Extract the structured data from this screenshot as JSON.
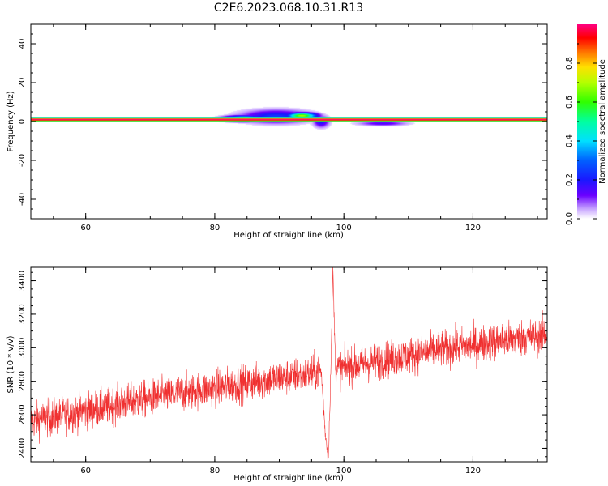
{
  "figure": {
    "title": "C2E6.2023.068.10.31.R13"
  },
  "colors": {
    "snr_line": "#f03030",
    "background": "#ffffff"
  },
  "colorbar": {
    "label": "Normalized spectral amplitude",
    "ticks": [
      "0.0",
      "0.2",
      "0.4",
      "0.6",
      "0.8"
    ],
    "tick_values": [
      0.0,
      0.2,
      0.4,
      0.6,
      0.8
    ],
    "range": [
      0,
      1
    ],
    "colormap": "rainbow"
  },
  "chart_data": [
    {
      "type": "heatmap",
      "title": "",
      "xlabel": "Height of straight line (km)",
      "ylabel": "Frequency (Hz)",
      "xlim": [
        51.5,
        131.5
      ],
      "ylim": [
        -50,
        50
      ],
      "xticks": [
        60,
        80,
        100,
        120
      ],
      "yticks": [
        -40,
        -20,
        0,
        20,
        40
      ],
      "xtick_labels": [
        "60",
        "80",
        "100",
        "120"
      ],
      "ytick_labels": [
        "-40",
        "-20",
        "0",
        "20",
        "40"
      ],
      "ridge": {
        "center_hz": 1,
        "half_width_hz": 1.2,
        "amplitude": 1.0
      },
      "blobs": [
        {
          "x_center": 84.5,
          "x_half_width": 2.0,
          "f_center": 1.5,
          "f_half_width": 1.0,
          "amplitude": 0.55
        },
        {
          "x_center": 89.5,
          "x_half_width": 3.5,
          "f_center": 2.5,
          "f_half_width": 2.2,
          "amplitude": 0.25
        },
        {
          "x_center": 93.5,
          "x_half_width": 1.5,
          "f_center": 3.0,
          "f_half_width": 1.0,
          "amplitude": 0.7
        },
        {
          "x_center": 96.5,
          "x_half_width": 0.8,
          "f_center": 0.0,
          "f_half_width": 2.0,
          "amplitude": 0.2
        },
        {
          "x_center": 106,
          "x_half_width": 2.5,
          "f_center": -1.0,
          "f_half_width": 0.8,
          "amplitude": 0.15
        }
      ]
    },
    {
      "type": "line",
      "title": "",
      "xlabel": "Height of straight line (km)",
      "ylabel": "SNR (10 * v/v)",
      "xlim": [
        51.5,
        131.5
      ],
      "ylim": [
        2320,
        3480
      ],
      "xticks": [
        60,
        80,
        100,
        120
      ],
      "yticks": [
        2400,
        2600,
        2800,
        3000,
        3200,
        3400
      ],
      "xtick_labels": [
        "60",
        "80",
        "100",
        "120"
      ],
      "ytick_labels": [
        "2400",
        "2600",
        "2800",
        "3000",
        "3200",
        "3400"
      ],
      "trend": {
        "x": [
          51.5,
          70,
          90,
          97,
          100,
          115,
          131.5
        ],
        "y": [
          2560,
          2700,
          2820,
          2860,
          2880,
          2990,
          3080
        ]
      },
      "noise_amplitude": 110,
      "spike": {
        "x": [
          96.5,
          97.1,
          97.6,
          98.0,
          98.3,
          98.7
        ],
        "y": [
          2860,
          2500,
          2340,
          2900,
          3470,
          2880
        ]
      }
    }
  ]
}
